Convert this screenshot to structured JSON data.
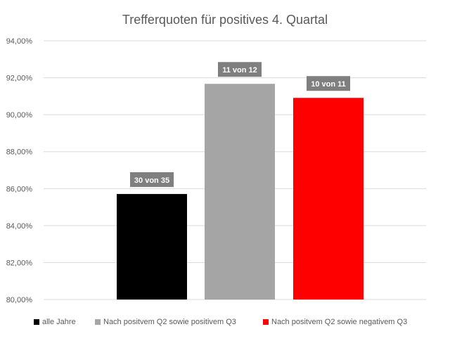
{
  "chart_data": {
    "type": "bar",
    "title": "Trefferquoten für positives 4. Quartal",
    "xlabel": "",
    "ylabel": "",
    "ylim": [
      0.8,
      0.94
    ],
    "yticks": [
      "80,00%",
      "82,00%",
      "84,00%",
      "86,00%",
      "88,00%",
      "90,00%",
      "92,00%",
      "94,00%"
    ],
    "grid": true,
    "legend_position": "bottom",
    "series": [
      {
        "name": "alle Jahre",
        "value": 0.8571,
        "label": "30 von 35",
        "color": "#000000"
      },
      {
        "name": "Nach positvem Q2 sowie positivem Q3",
        "value": 0.9167,
        "label": "11 von 12",
        "color": "#a5a5a5"
      },
      {
        "name": "Nach positvem Q2 sowie negativem Q3",
        "value": 0.9091,
        "label": "10 von 11",
        "color": "#ff0000"
      }
    ]
  },
  "colors": {
    "grid": "#d9d9d9",
    "axis_text": "#595959",
    "title_text": "#595959",
    "data_label_bg": "#7f7f7f",
    "data_label_text": "#ffffff"
  }
}
